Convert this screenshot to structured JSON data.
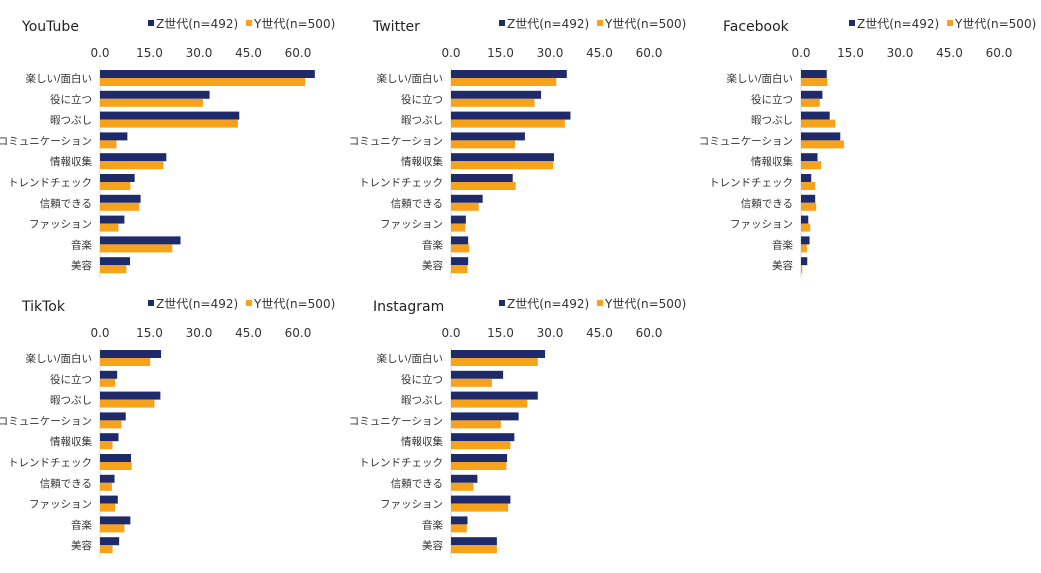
{
  "chart_data": [
    {
      "type": "bar",
      "orientation": "horizontal",
      "title": "YouTube",
      "xlim": [
        0,
        65
      ],
      "ticks": [
        "0.0",
        "15.0",
        "30.0",
        "45.0",
        "60.0"
      ],
      "categories": [
        "楽しい/面白い",
        "役に立つ",
        "暇つぶし",
        "コミュニケーション",
        "情報収集",
        "トレンドチェック",
        "信頼できる",
        "ファッション",
        "音楽",
        "美容"
      ],
      "series": [
        {
          "name": "Z世代(n=492)",
          "color": "#1f2a6b",
          "values": [
            65.1,
            33.2,
            42.2,
            8.3,
            20.1,
            10.5,
            12.3,
            7.4,
            24.4,
            9.1
          ]
        },
        {
          "name": "Y世代(n=500)",
          "color": "#f7a21b",
          "values": [
            62.2,
            31.2,
            41.8,
            5.0,
            19.2,
            9.2,
            11.9,
            5.6,
            21.9,
            8.0
          ]
        }
      ]
    },
    {
      "type": "bar",
      "orientation": "horizontal",
      "title": "Twitter",
      "xlim": [
        0,
        65
      ],
      "ticks": [
        "0.0",
        "15.0",
        "30.0",
        "45.0",
        "60.0"
      ],
      "categories": [
        "楽しい/面白い",
        "役に立つ",
        "暇つぶし",
        "コミュニケーション",
        "情報収集",
        "トレンドチェック",
        "信頼できる",
        "ファッション",
        "音楽",
        "美容"
      ],
      "series": [
        {
          "name": "Z世代(n=492)",
          "color": "#1f2a6b",
          "values": [
            35.1,
            27.3,
            36.2,
            22.4,
            31.2,
            18.7,
            9.6,
            4.5,
            5.2,
            5.2
          ]
        },
        {
          "name": "Y世代(n=500)",
          "color": "#f7a21b",
          "values": [
            31.9,
            25.3,
            34.5,
            19.4,
            31.0,
            19.6,
            8.4,
            4.3,
            5.5,
            5.0
          ]
        }
      ]
    },
    {
      "type": "bar",
      "orientation": "horizontal",
      "title": "Facebook",
      "xlim": [
        0,
        65
      ],
      "ticks": [
        "0.0",
        "15.0",
        "30.0",
        "45.0",
        "60.0"
      ],
      "categories": [
        "楽しい/面白い",
        "役に立つ",
        "暇つぶし",
        "コミュニケーション",
        "情報収集",
        "トレンドチェック",
        "信頼できる",
        "ファッション",
        "音楽",
        "美容"
      ],
      "series": [
        {
          "name": "Z世代(n=492)",
          "color": "#1f2a6b",
          "values": [
            7.8,
            6.5,
            8.7,
            11.9,
            5.0,
            3.1,
            4.3,
            2.2,
            2.6,
            1.9
          ]
        },
        {
          "name": "Y世代(n=500)",
          "color": "#f7a21b",
          "values": [
            8.0,
            5.7,
            10.4,
            13.0,
            6.1,
            4.3,
            4.6,
            2.8,
            1.8,
            0.4
          ]
        }
      ]
    },
    {
      "type": "bar",
      "orientation": "horizontal",
      "title": "TikTok",
      "xlim": [
        0,
        65
      ],
      "ticks": [
        "0.0",
        "15.0",
        "30.0",
        "45.0",
        "60.0"
      ],
      "categories": [
        "楽しい/面白い",
        "役に立つ",
        "暇つぶし",
        "コミュニケーション",
        "情報収集",
        "トレンドチェック",
        "信頼できる",
        "ファッション",
        "音楽",
        "美容"
      ],
      "series": [
        {
          "name": "Z世代(n=492)",
          "color": "#1f2a6b",
          "values": [
            18.5,
            5.2,
            18.3,
            7.8,
            5.6,
            9.4,
            4.4,
            5.4,
            9.2,
            5.8
          ]
        },
        {
          "name": "Y世代(n=500)",
          "color": "#f7a21b",
          "values": [
            15.2,
            4.6,
            16.5,
            6.5,
            3.8,
            9.6,
            3.6,
            4.6,
            7.4,
            3.8
          ]
        }
      ]
    },
    {
      "type": "bar",
      "orientation": "horizontal",
      "title": "Instagram",
      "xlim": [
        0,
        65
      ],
      "ticks": [
        "0.0",
        "15.0",
        "30.0",
        "45.0",
        "60.0"
      ],
      "categories": [
        "楽しい/面白い",
        "役に立つ",
        "暇つぶし",
        "コミュニケーション",
        "情報収集",
        "トレンドチェック",
        "信頼できる",
        "ファッション",
        "音楽",
        "美容"
      ],
      "series": [
        {
          "name": "Z世代(n=492)",
          "color": "#1f2a6b",
          "values": [
            28.5,
            15.8,
            26.3,
            20.5,
            19.2,
            17.0,
            8.0,
            18.0,
            5.0,
            13.9
          ]
        },
        {
          "name": "Y世代(n=500)",
          "color": "#f7a21b",
          "values": [
            26.3,
            12.4,
            23.1,
            15.1,
            18.0,
            16.8,
            6.8,
            17.3,
            4.8,
            13.9
          ]
        }
      ]
    }
  ]
}
